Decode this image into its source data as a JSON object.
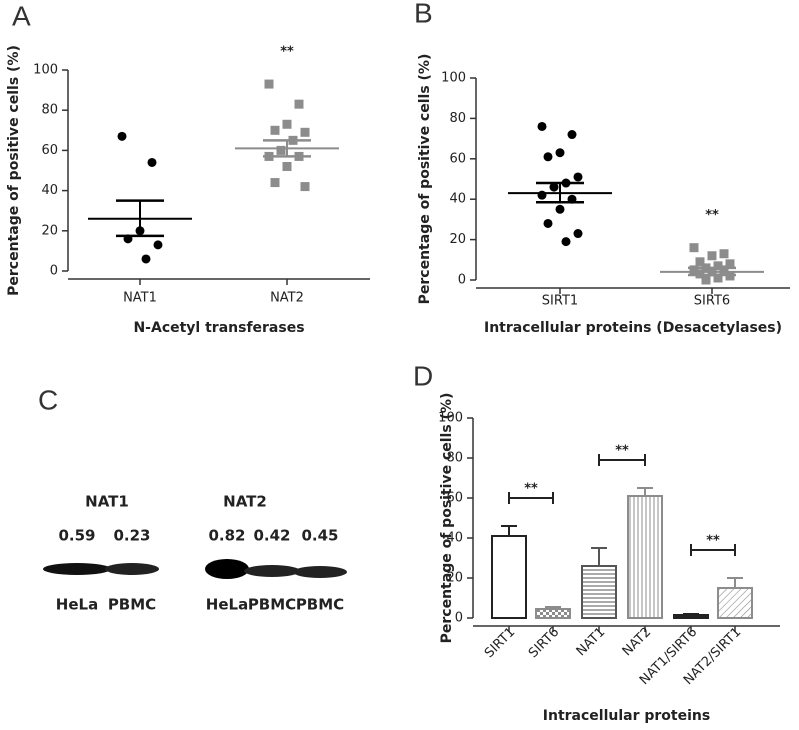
{
  "chart_data": [
    {
      "type": "dot",
      "panel": "A",
      "y_label": "Percentage of positive cells (%)",
      "x_label": "N-Acetyl transferases",
      "ylim": [
        0,
        100
      ],
      "yticks": [
        0,
        20,
        40,
        60,
        80,
        100
      ],
      "categories": [
        "NAT1",
        "NAT2"
      ],
      "groups": [
        {
          "marker": "circle",
          "color": "#000000",
          "values": [
            67,
            54,
            20,
            16,
            13,
            6
          ],
          "mean": 26,
          "error": [
            17.5,
            35
          ]
        },
        {
          "marker": "square",
          "color": "#8c8c8c",
          "values": [
            93,
            83,
            73,
            70,
            69,
            65,
            60,
            57,
            57,
            52,
            44,
            42
          ],
          "mean": 61,
          "error": [
            57,
            65
          ],
          "annotation": "**"
        }
      ]
    },
    {
      "type": "dot",
      "panel": "B",
      "y_label": "Percentage of positive cells (%)",
      "x_label": "Intracellular proteins (Desacetylases)",
      "ylim": [
        0,
        100
      ],
      "yticks": [
        0,
        20,
        40,
        60,
        80,
        100
      ],
      "categories": [
        "SIRT1",
        "SIRT6"
      ],
      "groups": [
        {
          "marker": "circle",
          "color": "#000000",
          "values": [
            76,
            72,
            63,
            61,
            51,
            48,
            46,
            42,
            40,
            35,
            28,
            23,
            19
          ],
          "mean": 43,
          "error": [
            38.5,
            48
          ]
        },
        {
          "marker": "square",
          "color": "#8c8c8c",
          "values": [
            16,
            13,
            12,
            9,
            8,
            7,
            6,
            5,
            5,
            4,
            3,
            2,
            1,
            0
          ],
          "mean": 4,
          "error": [
            2.5,
            6
          ],
          "annotation": "**"
        }
      ]
    },
    {
      "type": "bar",
      "panel": "D",
      "y_label": "Percentage of positive cells (%)",
      "x_label": "Intracellular proteins",
      "ylim": [
        0,
        100
      ],
      "yticks": [
        0,
        20,
        40,
        60,
        80,
        100
      ],
      "categories": [
        "SIRT1",
        "SIRT6",
        "NAT1",
        "NAT2",
        "NAT1/SIRT6",
        "NAT2/SIRT1"
      ],
      "values": [
        41,
        4.5,
        26,
        61,
        1.5,
        15
      ],
      "errors": [
        5,
        1,
        9,
        4,
        0.5,
        5
      ],
      "colors": [
        "#222222",
        "#8c8c8c",
        "#555555",
        "#8c8c8c",
        "#222222",
        "#8c8c8c"
      ],
      "patterns": [
        "none",
        "checker",
        "hlines",
        "vlines",
        "solid",
        "diagonal"
      ],
      "annotations": [
        {
          "text": "**",
          "between": [
            "SIRT1",
            "SIRT6"
          ]
        },
        {
          "text": "**",
          "between": [
            "NAT1",
            "NAT2"
          ]
        },
        {
          "text": "**",
          "between": [
            "NAT1/SIRT6",
            "NAT2/SIRT1"
          ]
        }
      ]
    }
  ],
  "blot": {
    "panel": "C",
    "blots": [
      {
        "title": "NAT1",
        "values": [
          0.59,
          0.23
        ],
        "lanes": [
          "HeLa",
          "PBMC"
        ]
      },
      {
        "title": "NAT2",
        "values": [
          0.82,
          0.42,
          0.45
        ],
        "lanes": [
          "HeLa",
          "PBMC",
          "PBMC"
        ]
      }
    ]
  }
}
